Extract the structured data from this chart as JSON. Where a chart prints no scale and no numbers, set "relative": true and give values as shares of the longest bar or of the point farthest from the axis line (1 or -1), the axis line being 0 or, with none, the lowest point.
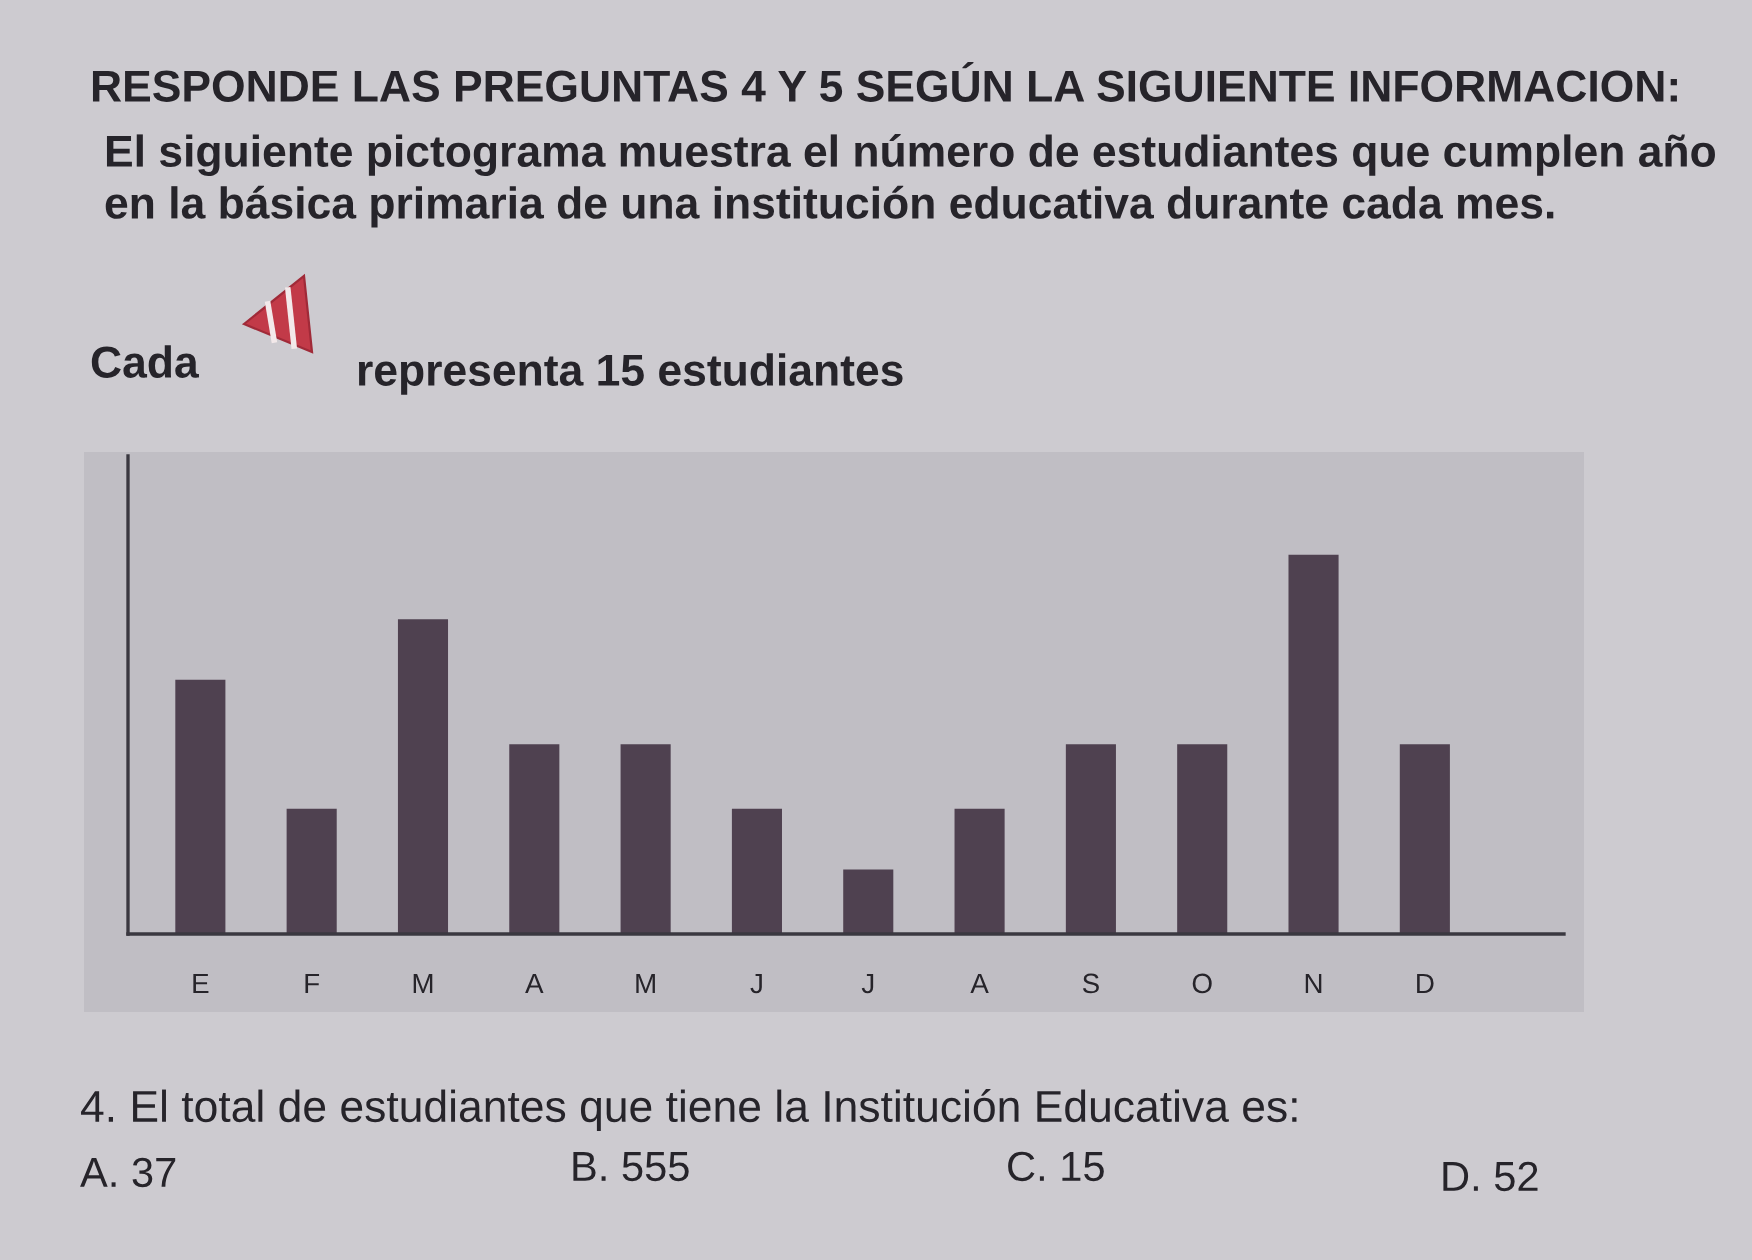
{
  "chart_data": {
    "type": "bar",
    "title": "RESPONDE LAS PREGUNTAS 4 Y 5 SEGÚN LA SIGUIENTE INFORMACION:",
    "subtitle": "El siguiente pictograma muestra el número de estudiantes que cumplen año en la básica primaria de una institución educativa durante cada mes.",
    "categories": [
      "E",
      "F",
      "M",
      "A",
      "M",
      "J",
      "J",
      "A",
      "S",
      "O",
      "N",
      "D"
    ],
    "values": [
      0.67,
      0.33,
      0.83,
      0.5,
      0.5,
      0.33,
      0.17,
      0.33,
      0.5,
      0.5,
      1,
      0.5
    ],
    "color": "#4f4150",
    "relative": true,
    "annotations": [
      "Cada",
      "representa 15 estudiantes",
      "4. El total de estudiantes que tiene la Institución Educativa es:",
      "A. 37",
      "B. 555",
      "C. 15",
      "D. 52"
    ]
  }
}
